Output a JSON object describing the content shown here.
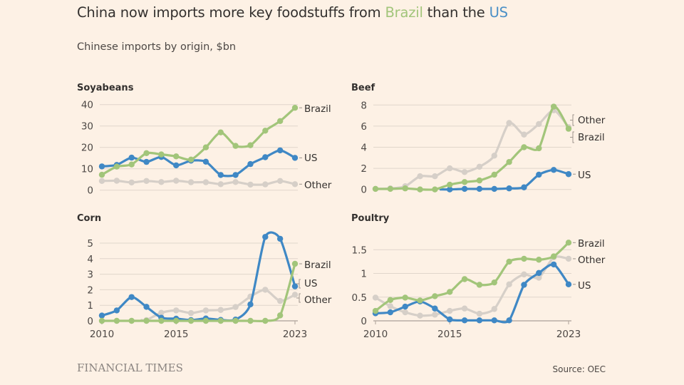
{
  "header": {
    "title_prefix": "China now imports more key foodstuffs from ",
    "title_brazil": "Brazil",
    "title_mid": " than the ",
    "title_us": "US",
    "subtitle": "Chinese imports by origin, $bn"
  },
  "footer": {
    "logo": "FINANCIAL TIMES",
    "source": "Source: OEC"
  },
  "colors": {
    "Brazil": "#a2c57a",
    "US": "#3f88c5",
    "Other": "#d6cfc8",
    "background": "#fdf1e5",
    "grid": "#e0d6cb",
    "axis": "#b8aea5",
    "text": "#33302e"
  },
  "chart_data": [
    {
      "type": "line",
      "title": "Soyabeans",
      "xlabel": "",
      "ylabel": "$bn",
      "x": [
        2010,
        2011,
        2012,
        2013,
        2014,
        2015,
        2016,
        2017,
        2018,
        2019,
        2020,
        2021,
        2022,
        2023
      ],
      "ylim": [
        0,
        40
      ],
      "yticks": [
        0,
        10,
        20,
        30,
        40
      ],
      "xticks": [],
      "grid": true,
      "series": [
        {
          "name": "Other",
          "values": [
            4.3,
            4.4,
            3.6,
            4.3,
            3.8,
            4.4,
            3.7,
            3.7,
            2.8,
            3.8,
            2.6,
            2.7,
            4.3,
            2.8
          ]
        },
        {
          "name": "US",
          "values": [
            11.1,
            11.8,
            15.2,
            13.2,
            15.5,
            11.6,
            13.8,
            13.3,
            7.1,
            7.1,
            12.2,
            15.4,
            18.6,
            15.1
          ]
        },
        {
          "name": "Brazil",
          "values": [
            7.2,
            11.0,
            12.0,
            17.3,
            16.7,
            15.8,
            14.3,
            20.0,
            27.0,
            20.7,
            21.0,
            27.8,
            32.3,
            38.5
          ]
        }
      ],
      "end_labels": [
        {
          "series": "Brazil",
          "text": "Brazil"
        },
        {
          "series": "US",
          "text": "US"
        },
        {
          "series": "Other",
          "text": "Other"
        }
      ]
    },
    {
      "type": "line",
      "title": "Beef",
      "xlabel": "",
      "ylabel": "$bn",
      "x": [
        2010,
        2011,
        2012,
        2013,
        2014,
        2015,
        2016,
        2017,
        2018,
        2019,
        2020,
        2021,
        2022,
        2023
      ],
      "ylim": [
        0,
        8
      ],
      "yticks": [
        0,
        2,
        4,
        6,
        8
      ],
      "xticks": [],
      "grid": true,
      "series": [
        {
          "name": "Other",
          "values": [
            0.05,
            0.1,
            0.3,
            1.25,
            1.25,
            2.0,
            1.65,
            2.15,
            3.2,
            6.3,
            5.2,
            6.2,
            7.5,
            5.9
          ]
        },
        {
          "name": "US",
          "values": [
            null,
            null,
            null,
            null,
            null,
            0.0,
            0.05,
            0.05,
            0.05,
            0.1,
            0.2,
            1.4,
            1.85,
            1.45
          ]
        },
        {
          "name": "Brazil",
          "values": [
            0.05,
            0.05,
            0.1,
            0.0,
            0.0,
            0.45,
            0.7,
            0.85,
            1.4,
            2.6,
            4.0,
            3.9,
            7.85,
            5.75
          ]
        }
      ],
      "end_labels": [
        {
          "series": "Other",
          "text": "Other"
        },
        {
          "series": "Brazil",
          "text": "Brazil"
        },
        {
          "series": "US",
          "text": "US"
        }
      ]
    },
    {
      "type": "line",
      "title": "Corn",
      "xlabel": "",
      "ylabel": "$bn",
      "x": [
        2010,
        2011,
        2012,
        2013,
        2014,
        2015,
        2016,
        2017,
        2018,
        2019,
        2020,
        2021,
        2022,
        2023
      ],
      "ylim": [
        0,
        5.5
      ],
      "yticks": [
        0,
        1,
        2,
        3,
        4,
        5
      ],
      "xticks": [
        "2010",
        "2015",
        "2023"
      ],
      "grid": true,
      "series": [
        {
          "name": "Other",
          "values": [
            null,
            null,
            null,
            0.05,
            0.52,
            0.67,
            0.5,
            0.67,
            0.7,
            0.89,
            1.56,
            2.0,
            1.28,
            1.68
          ]
        },
        {
          "name": "US",
          "values": [
            0.34,
            0.67,
            1.53,
            0.9,
            0.2,
            0.14,
            0.05,
            0.15,
            0.06,
            0.08,
            1.06,
            5.4,
            5.28,
            2.22
          ]
        },
        {
          "name": "Brazil",
          "values": [
            0.0,
            0.0,
            0.0,
            0.0,
            0.0,
            0.0,
            0.0,
            0.0,
            0.0,
            0.0,
            0.0,
            0.0,
            0.35,
            3.67
          ]
        }
      ],
      "end_labels": [
        {
          "series": "Brazil",
          "text": "Brazil"
        },
        {
          "series": "US",
          "text": "US"
        },
        {
          "series": "Other",
          "text": "Other"
        }
      ]
    },
    {
      "type": "line",
      "title": "Poultry",
      "xlabel": "",
      "ylabel": "$bn",
      "x": [
        2010,
        2011,
        2012,
        2013,
        2014,
        2015,
        2016,
        2017,
        2018,
        2019,
        2020,
        2021,
        2022,
        2023
      ],
      "ylim": [
        0,
        1.7
      ],
      "yticks": [
        0,
        0.5,
        1,
        1.5
      ],
      "ytick_labels": [
        "0",
        "0.5",
        "1",
        "1.5"
      ],
      "xticks": [
        "2010",
        "2015",
        "2023"
      ],
      "grid": true,
      "series": [
        {
          "name": "Other",
          "values": [
            0.49,
            0.31,
            0.18,
            0.11,
            0.13,
            0.21,
            0.26,
            0.15,
            0.25,
            0.77,
            0.98,
            0.91,
            1.34,
            1.31
          ]
        },
        {
          "name": "US",
          "values": [
            0.16,
            0.18,
            0.3,
            0.41,
            0.26,
            0.03,
            0.01,
            0.01,
            0.01,
            0.01,
            0.76,
            1.01,
            1.19,
            0.77
          ]
        },
        {
          "name": "Brazil",
          "values": [
            0.21,
            0.44,
            0.49,
            0.43,
            0.52,
            0.61,
            0.88,
            0.76,
            0.81,
            1.25,
            1.31,
            1.29,
            1.36,
            1.65
          ]
        }
      ],
      "end_labels": [
        {
          "series": "Brazil",
          "text": "Brazil"
        },
        {
          "series": "Other",
          "text": "Other"
        },
        {
          "series": "US",
          "text": "US"
        }
      ]
    }
  ]
}
